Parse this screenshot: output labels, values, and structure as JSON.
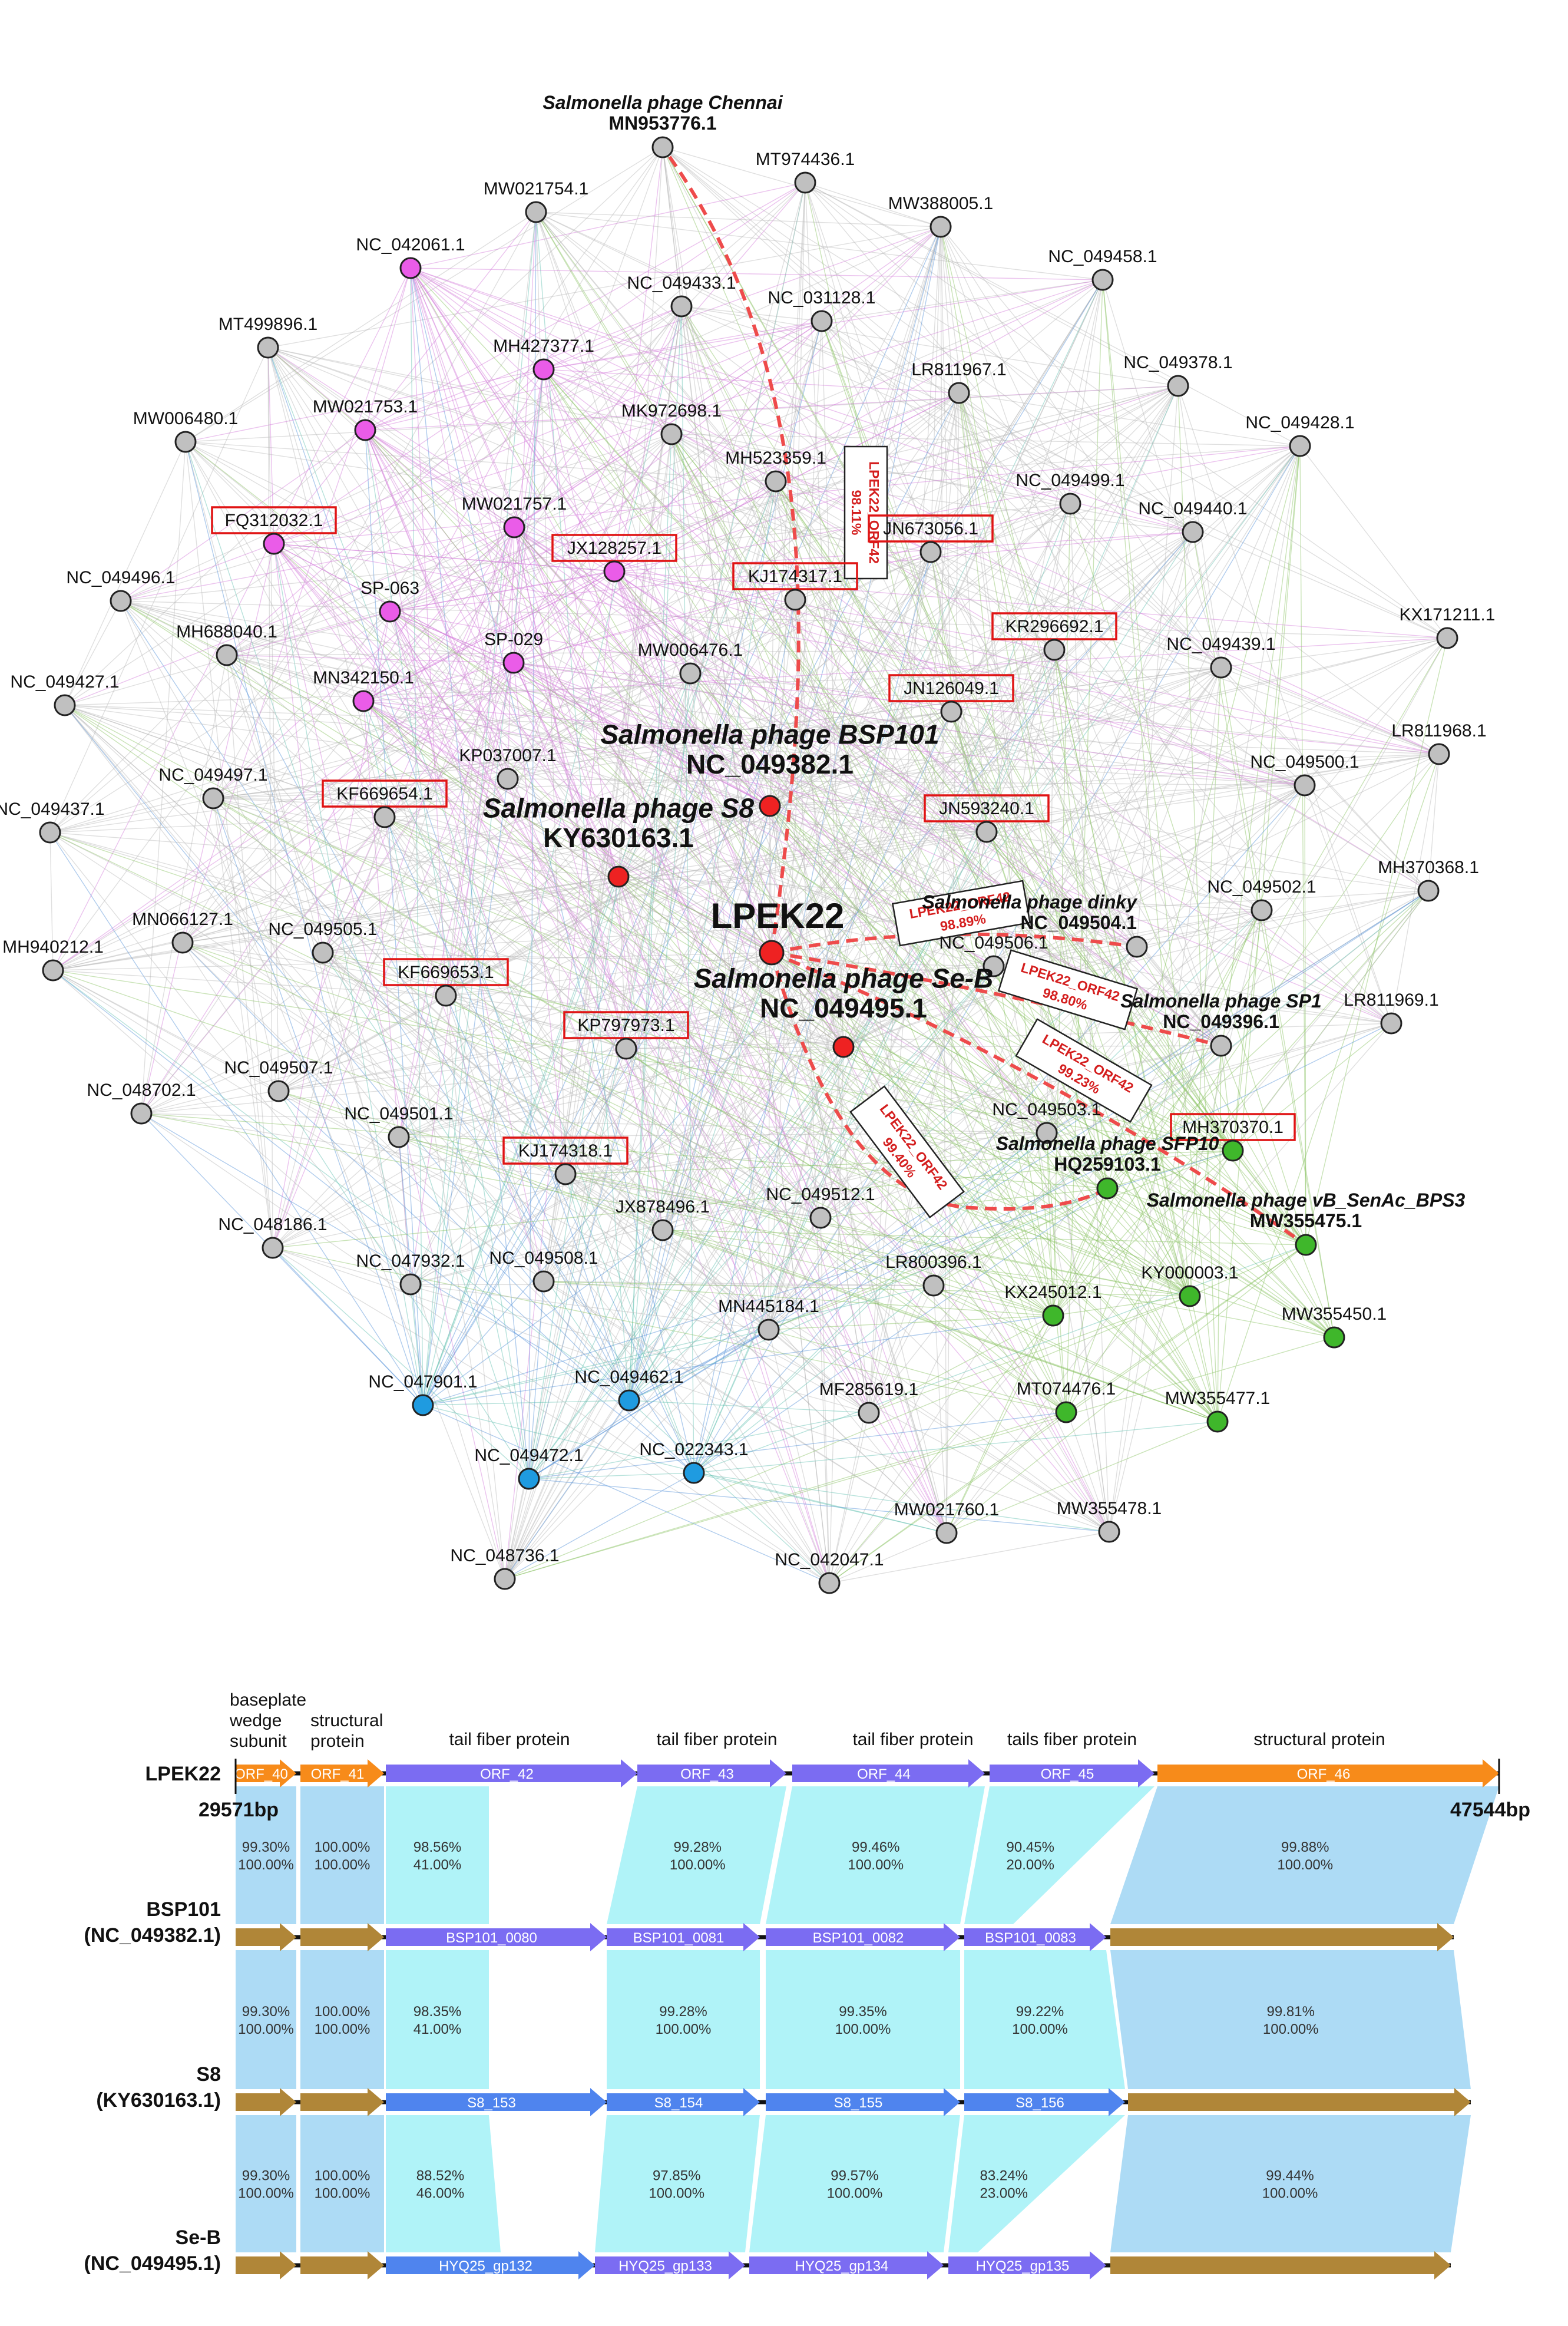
{
  "network": {
    "edge_colors": {
      "gray": "#b9b9b9",
      "magenta": "#d27ad9",
      "green": "#88c060",
      "blue": "#4f8fd8",
      "cyan": "#5fbfb0"
    },
    "node_colors": {
      "gray": "#c0c0c0",
      "magenta": "#ea5ce8",
      "red": "#ee2222",
      "green": "#3fb72b",
      "blue": "#1f9be0"
    },
    "nodes": [
      {
        "id": "chennai",
        "label_line1": "Salmonella phage Chennai",
        "label": "MN953776.1",
        "color": "gray",
        "boxed": false
      },
      {
        "id": "MT974436",
        "label": "MT974436.1",
        "color": "gray",
        "boxed": false
      },
      {
        "id": "MW021754",
        "label": "MW021754.1",
        "color": "gray",
        "boxed": false
      },
      {
        "id": "MW388005",
        "label": "MW388005.1",
        "color": "gray",
        "boxed": false
      },
      {
        "id": "NC_049458",
        "label": "NC_049458.1",
        "color": "gray",
        "boxed": false
      },
      {
        "id": "NC_042061",
        "label": "NC_042061.1",
        "color": "magenta",
        "boxed": false
      },
      {
        "id": "NC_049433",
        "label": "NC_049433.1",
        "color": "gray",
        "boxed": false
      },
      {
        "id": "NC_031128",
        "label": "NC_031128.1",
        "color": "gray",
        "boxed": false
      },
      {
        "id": "MT499896",
        "label": "MT499896.1",
        "color": "gray",
        "boxed": false
      },
      {
        "id": "MH427377",
        "label": "MH427377.1",
        "color": "magenta",
        "boxed": false
      },
      {
        "id": "NC_049378",
        "label": "NC_049378.1",
        "color": "gray",
        "boxed": false
      },
      {
        "id": "LR811967",
        "label": "LR811967.1",
        "color": "gray",
        "boxed": false
      },
      {
        "id": "MW021753",
        "label": "MW021753.1",
        "color": "magenta",
        "boxed": false
      },
      {
        "id": "MK972698",
        "label": "MK972698.1",
        "color": "gray",
        "boxed": false
      },
      {
        "id": "MW006480",
        "label": "MW006480.1",
        "color": "gray",
        "boxed": false
      },
      {
        "id": "NC_049428",
        "label": "NC_049428.1",
        "color": "gray",
        "boxed": false
      },
      {
        "id": "MH523359",
        "label": "MH523359.1",
        "color": "gray",
        "boxed": false
      },
      {
        "id": "NC_049499",
        "label": "NC_049499.1",
        "color": "gray",
        "boxed": false
      },
      {
        "id": "FQ312032",
        "label": "FQ312032.1",
        "color": "magenta",
        "boxed": true
      },
      {
        "id": "MW021757",
        "label": "MW021757.1",
        "color": "magenta",
        "boxed": false
      },
      {
        "id": "JN673056",
        "label": "JN673056.1",
        "color": "gray",
        "boxed": true
      },
      {
        "id": "NC_049440",
        "label": "NC_049440.1",
        "color": "gray",
        "boxed": false
      },
      {
        "id": "NC_049496",
        "label": "NC_049496.1",
        "color": "gray",
        "boxed": false
      },
      {
        "id": "JX128257",
        "label": "JX128257.1",
        "color": "magenta",
        "boxed": true
      },
      {
        "id": "KJ174317",
        "label": "KJ174317.1",
        "color": "gray",
        "boxed": true
      },
      {
        "id": "SP-063",
        "label": "SP-063",
        "color": "magenta",
        "boxed": false
      },
      {
        "id": "KX171211",
        "label": "KX171211.1",
        "color": "gray",
        "boxed": false
      },
      {
        "id": "KR296692",
        "label": "KR296692.1",
        "color": "gray",
        "boxed": true
      },
      {
        "id": "MH688040",
        "label": "MH688040.1",
        "color": "gray",
        "boxed": false
      },
      {
        "id": "SP-029",
        "label": "SP-029",
        "color": "magenta",
        "boxed": false
      },
      {
        "id": "MW006476",
        "label": "MW006476.1",
        "color": "gray",
        "boxed": false
      },
      {
        "id": "NC_049439",
        "label": "NC_049439.1",
        "color": "gray",
        "boxed": false
      },
      {
        "id": "NC_049427",
        "label": "NC_049427.1",
        "color": "gray",
        "boxed": false
      },
      {
        "id": "MN342150",
        "label": "MN342150.1",
        "color": "magenta",
        "boxed": false
      },
      {
        "id": "JN126049",
        "label": "JN126049.1",
        "color": "gray",
        "boxed": true
      },
      {
        "id": "LR811968",
        "label": "LR811968.1",
        "color": "gray",
        "boxed": false
      },
      {
        "id": "KP037007",
        "label": "KP037007.1",
        "color": "gray",
        "boxed": false
      },
      {
        "id": "BSP101",
        "label_line1": "Salmonella phage BSP101",
        "label": "NC_049382.1",
        "color": "red",
        "boxed": false
      },
      {
        "id": "NC_049500",
        "label": "NC_049500.1",
        "color": "gray",
        "boxed": false
      },
      {
        "id": "NC_049497",
        "label": "NC_049497.1",
        "color": "gray",
        "boxed": false
      },
      {
        "id": "KF669654",
        "label": "KF669654.1",
        "color": "gray",
        "boxed": true
      },
      {
        "id": "JN593240",
        "label": "JN593240.1",
        "color": "gray",
        "boxed": true
      },
      {
        "id": "NC_049437",
        "label": "NC_049437.1",
        "color": "gray",
        "boxed": false
      },
      {
        "id": "S8",
        "label_line1": "Salmonella phage S8",
        "label": "KY630163.1",
        "color": "red",
        "boxed": false
      },
      {
        "id": "MH370368",
        "label": "MH370368.1",
        "color": "gray",
        "boxed": false
      },
      {
        "id": "NC_049502",
        "label": "NC_049502.1",
        "color": "gray",
        "boxed": false
      },
      {
        "id": "dinky",
        "label_line1": "Salmonella phage dinky",
        "label": "NC_049504.1",
        "color": "gray",
        "boxed": false
      },
      {
        "id": "LPEK22",
        "label": "LPEK22",
        "color": "red",
        "boxed": false
      },
      {
        "id": "MN066127",
        "label": "MN066127.1",
        "color": "gray",
        "boxed": false
      },
      {
        "id": "NC_049505",
        "label": "NC_049505.1",
        "color": "gray",
        "boxed": false
      },
      {
        "id": "MH940212",
        "label": "MH940212.1",
        "color": "gray",
        "boxed": false
      },
      {
        "id": "KF669653",
        "label": "KF669653.1",
        "color": "gray",
        "boxed": true
      },
      {
        "id": "NC_049506",
        "label": "NC_049506.1",
        "color": "gray",
        "boxed": false
      },
      {
        "id": "SeB",
        "label_line1": "Salmonella phage Se-B",
        "label": "NC_049495.1",
        "color": "red",
        "boxed": false
      },
      {
        "id": "SP1",
        "label_line1": "Salmonella phage SP1",
        "label": "NC_049396.1",
        "color": "gray",
        "boxed": false
      },
      {
        "id": "LR811969",
        "label": "LR811969.1",
        "color": "gray",
        "boxed": false
      },
      {
        "id": "KP797973",
        "label": "KP797973.1",
        "color": "gray",
        "boxed": true
      },
      {
        "id": "NC_049507",
        "label": "NC_049507.1",
        "color": "gray",
        "boxed": false
      },
      {
        "id": "NC_048702",
        "label": "NC_048702.1",
        "color": "gray",
        "boxed": false
      },
      {
        "id": "NC_049501",
        "label": "NC_049501.1",
        "color": "gray",
        "boxed": false
      },
      {
        "id": "NC_049503",
        "label": "NC_049503.1",
        "color": "gray",
        "boxed": false
      },
      {
        "id": "MH370370",
        "label": "MH370370.1",
        "color": "green",
        "boxed": true
      },
      {
        "id": "KJ174318",
        "label": "KJ174318.1",
        "color": "gray",
        "boxed": true
      },
      {
        "id": "SFP10",
        "label_line1": "Salmonella phage SFP10",
        "label": "HQ259103.1",
        "color": "green",
        "boxed": false
      },
      {
        "id": "BPS3",
        "label_line1": "Salmonella phage vB_SenAc_BPS3",
        "label": "MW355475.1",
        "color": "green",
        "boxed": false
      },
      {
        "id": "JX878496",
        "label": "JX878496.1",
        "color": "gray",
        "boxed": false
      },
      {
        "id": "NC_049512",
        "label": "NC_049512.1",
        "color": "gray",
        "boxed": false
      },
      {
        "id": "NC_048186",
        "label": "NC_048186.1",
        "color": "gray",
        "boxed": false
      },
      {
        "id": "NC_047932",
        "label": "NC_047932.1",
        "color": "gray",
        "boxed": false
      },
      {
        "id": "NC_049508",
        "label": "NC_049508.1",
        "color": "gray",
        "boxed": false
      },
      {
        "id": "LR800396",
        "label": "LR800396.1",
        "color": "gray",
        "boxed": false
      },
      {
        "id": "KY000003",
        "label": "KY000003.1",
        "color": "green",
        "boxed": false
      },
      {
        "id": "KX245012",
        "label": "KX245012.1",
        "color": "green",
        "boxed": false
      },
      {
        "id": "MW355450",
        "label": "MW355450.1",
        "color": "green",
        "boxed": false
      },
      {
        "id": "MN445184",
        "label": "MN445184.1",
        "color": "gray",
        "boxed": false
      },
      {
        "id": "NC_047901",
        "label": "NC_047901.1",
        "color": "blue",
        "boxed": false
      },
      {
        "id": "NC_049462",
        "label": "NC_049462.1",
        "color": "blue",
        "boxed": false
      },
      {
        "id": "MF285619",
        "label": "MF285619.1",
        "color": "gray",
        "boxed": false
      },
      {
        "id": "MT074476",
        "label": "MT074476.1",
        "color": "green",
        "boxed": false
      },
      {
        "id": "MW355477",
        "label": "MW355477.1",
        "color": "green",
        "boxed": false
      },
      {
        "id": "NC_049472",
        "label": "NC_049472.1",
        "color": "blue",
        "boxed": false
      },
      {
        "id": "NC_022343",
        "label": "NC_022343.1",
        "color": "blue",
        "boxed": false
      },
      {
        "id": "MW021760",
        "label": "MW021760.1",
        "color": "gray",
        "boxed": false
      },
      {
        "id": "MW355478",
        "label": "MW355478.1",
        "color": "gray",
        "boxed": false
      },
      {
        "id": "NC_048736",
        "label": "NC_048736.1",
        "color": "gray",
        "boxed": false
      },
      {
        "id": "NC_042047",
        "label": "NC_042047.1",
        "color": "gray",
        "boxed": false
      }
    ],
    "highlight_edges": [
      {
        "to": "chennai",
        "label": "LPEK22_ORF42",
        "value": "98.11%"
      },
      {
        "to": "dinky",
        "label": "LPEK22_ORF42",
        "value": "98.89%"
      },
      {
        "to": "SP1",
        "label": "LPEK22_ORF42",
        "value": "98.80%"
      },
      {
        "to": "BPS3",
        "label": "LPEK22_ORF42",
        "value": "99.23%"
      },
      {
        "to": "SFP10",
        "label": "LPEK22_ORF42",
        "value": "99.40%"
      }
    ]
  },
  "synteny": {
    "colors": {
      "orange": "#f78b1a",
      "purple": "#7b6cf2",
      "blue": "#4f84ee",
      "brown": "#b08638",
      "cyan": "#a9f2f7",
      "lightblue": "#a6d8f4"
    },
    "headers": [
      "baseplate",
      "wedge",
      "subunit",
      "structural",
      "protein",
      "tail fiber  protein",
      "tail fiber protein",
      "tail fiber protein",
      "tails fiber protein",
      "structural protein"
    ],
    "ruler": {
      "start": "29571bp",
      "end": "47544bp"
    },
    "rows": [
      {
        "name": "LPEK22",
        "genes": [
          "ORF_40",
          "ORF_41",
          "ORF_42",
          "ORF_43",
          "ORF_44",
          "ORF_45",
          "ORF_46"
        ]
      },
      {
        "name": "BSP101",
        "acc": "(NC_049382.1)",
        "genes": [
          "",
          "",
          "BSP101_0080",
          "BSP101_0081",
          "BSP101_0082",
          "BSP101_0083",
          ""
        ]
      },
      {
        "name": "S8",
        "acc": "(KY630163.1)",
        "genes": [
          "",
          "",
          "S8_153",
          "S8_154",
          "S8_155",
          "S8_156",
          ""
        ]
      },
      {
        "name": "Se-B",
        "acc": "(NC_049495.1)",
        "genes": [
          "",
          "",
          "HYQ25_gp132",
          "HYQ25_gp133",
          "HYQ25_gp134",
          "HYQ25_gp135",
          ""
        ]
      }
    ],
    "identities": [
      [
        [
          "99.30%",
          "100.00%"
        ],
        [
          "100.00%",
          "100.00%"
        ],
        [
          "98.56%",
          "41.00%"
        ],
        [
          "99.28%",
          "100.00%"
        ],
        [
          "99.46%",
          "100.00%"
        ],
        [
          "90.45%",
          "20.00%"
        ],
        [
          "99.88%",
          "100.00%"
        ]
      ],
      [
        [
          "99.30%",
          "100.00%"
        ],
        [
          "100.00%",
          "100.00%"
        ],
        [
          "98.35%",
          "41.00%"
        ],
        [
          "99.28%",
          "100.00%"
        ],
        [
          "99.35%",
          "100.00%"
        ],
        [
          "99.22%",
          "100.00%"
        ],
        [
          "99.81%",
          "100.00%"
        ]
      ],
      [
        [
          "99.30%",
          "100.00%"
        ],
        [
          "100.00%",
          "100.00%"
        ],
        [
          "88.52%",
          "46.00%"
        ],
        [
          "97.85%",
          "100.00%"
        ],
        [
          "99.57%",
          "100.00%"
        ],
        [
          "83.24%",
          "23.00%"
        ],
        [
          "99.44%",
          "100.00%"
        ]
      ]
    ]
  }
}
